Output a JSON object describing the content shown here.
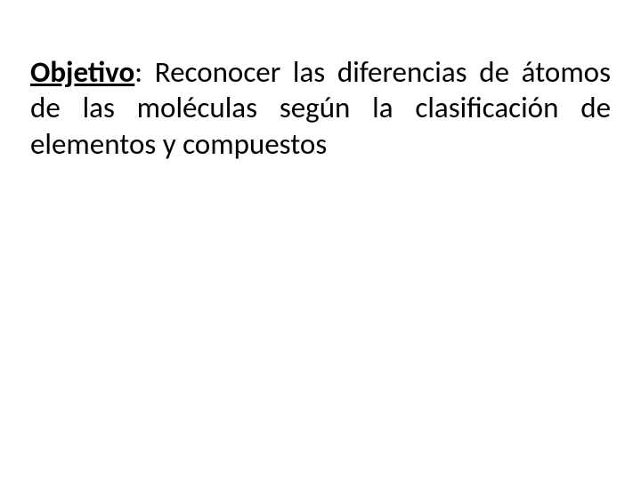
{
  "slide": {
    "background_color": "#ffffff",
    "text_color": "#000000",
    "font_family": "Calibri, Segoe UI, Arial, sans-serif",
    "font_size_pt": 25,
    "text_align": "justify",
    "label": "Objetivo",
    "label_style": {
      "bold": true,
      "underline": true
    },
    "separator": ": ",
    "body": "Reconocer las diferencias de átomos de las moléculas según la clasificación de elementos y compuestos"
  }
}
